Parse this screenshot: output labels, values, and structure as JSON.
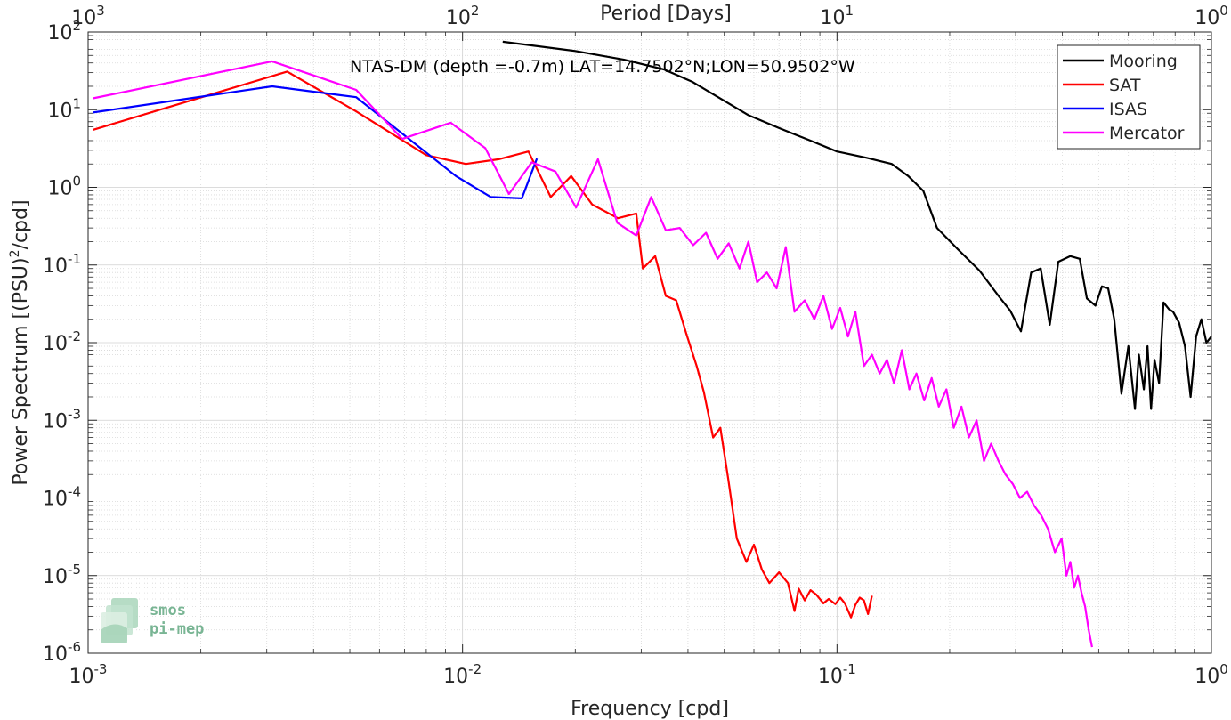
{
  "chart_data": {
    "type": "line",
    "title": "NTAS-DM (depth =-0.7m) LAT=14.7502°N;LON=50.9502°W",
    "xlabel": "Frequency [cpd]",
    "ylabel": "Power Spectrum [(PSU)²/cpd]",
    "ylabel_main": "Power Spectrum [(PSU)",
    "ylabel_sup": "2",
    "ylabel_end": "/cpd]",
    "top_xlabel": "Period [Days]",
    "x_scale": "log",
    "y_scale": "log",
    "xlim": [
      0.001,
      1
    ],
    "ylim": [
      1e-06,
      100
    ],
    "grid": true,
    "legend_position": "top-right",
    "x_ticks": [
      {
        "value": 0.001,
        "base": "10",
        "exp": "-3"
      },
      {
        "value": 0.01,
        "base": "10",
        "exp": "-2"
      },
      {
        "value": 0.1,
        "base": "10",
        "exp": "-1"
      },
      {
        "value": 1,
        "base": "10",
        "exp": "0"
      }
    ],
    "y_ticks": [
      {
        "value": 1e-06,
        "base": "10",
        "exp": "-6"
      },
      {
        "value": 1e-05,
        "base": "10",
        "exp": "-5"
      },
      {
        "value": 0.0001,
        "base": "10",
        "exp": "-4"
      },
      {
        "value": 0.001,
        "base": "10",
        "exp": "-3"
      },
      {
        "value": 0.01,
        "base": "10",
        "exp": "-2"
      },
      {
        "value": 0.1,
        "base": "10",
        "exp": "-1"
      },
      {
        "value": 1,
        "base": "10",
        "exp": "0"
      },
      {
        "value": 10,
        "base": "10",
        "exp": "1"
      },
      {
        "value": 100,
        "base": "10",
        "exp": "2"
      }
    ],
    "top_ticks": [
      {
        "value": 0.001,
        "base": "10",
        "exp": "3"
      },
      {
        "value": 0.01,
        "base": "10",
        "exp": "2"
      },
      {
        "value": 0.1,
        "base": "10",
        "exp": "1"
      },
      {
        "value": 1,
        "base": "10",
        "exp": "0"
      }
    ],
    "series": [
      {
        "name": "Mooring",
        "color": "#000000",
        "x": [
          0.0128,
          0.02,
          0.027,
          0.0345,
          0.041,
          0.05,
          0.058,
          0.07,
          0.085,
          0.1,
          0.12,
          0.14,
          0.155,
          0.17,
          0.185,
          0.21,
          0.24,
          0.27,
          0.29,
          0.31,
          0.33,
          0.35,
          0.37,
          0.39,
          0.42,
          0.445,
          0.465,
          0.49,
          0.51,
          0.53,
          0.55,
          0.575,
          0.6,
          0.625,
          0.64,
          0.66,
          0.675,
          0.69,
          0.705,
          0.725,
          0.745,
          0.77,
          0.79,
          0.82,
          0.85,
          0.88,
          0.91,
          0.94,
          0.97,
          1.0
        ],
        "y": [
          75,
          57,
          44,
          33,
          23,
          13,
          8.5,
          5.8,
          4.0,
          2.9,
          2.4,
          2.0,
          1.4,
          0.9,
          0.3,
          0.16,
          0.085,
          0.04,
          0.026,
          0.014,
          0.08,
          0.09,
          0.017,
          0.11,
          0.13,
          0.12,
          0.037,
          0.03,
          0.053,
          0.05,
          0.02,
          0.0022,
          0.009,
          0.0014,
          0.007,
          0.0025,
          0.009,
          0.0014,
          0.006,
          0.003,
          0.033,
          0.027,
          0.025,
          0.018,
          0.009,
          0.002,
          0.012,
          0.02,
          0.01,
          0.012
        ]
      },
      {
        "name": "SAT",
        "color": "#ff0000",
        "x": [
          0.00103,
          0.0034,
          0.0052,
          0.008,
          0.0102,
          0.0125,
          0.015,
          0.0172,
          0.0195,
          0.0222,
          0.026,
          0.0291,
          0.0303,
          0.0327,
          0.0349,
          0.0372,
          0.0396,
          0.0422,
          0.0441,
          0.0467,
          0.0488,
          0.0512,
          0.054,
          0.0573,
          0.06,
          0.063,
          0.066,
          0.07,
          0.074,
          0.077,
          0.079,
          0.082,
          0.085,
          0.088,
          0.092,
          0.095,
          0.099,
          0.102,
          0.105,
          0.109,
          0.112,
          0.115,
          0.118,
          0.121,
          0.124
        ],
        "y": [
          5.5,
          31,
          9.5,
          2.6,
          2.0,
          2.3,
          2.9,
          0.75,
          1.4,
          0.6,
          0.4,
          0.46,
          0.09,
          0.13,
          0.04,
          0.035,
          0.013,
          0.005,
          0.0023,
          0.0006,
          0.0008,
          0.00018,
          3e-05,
          1.5e-05,
          2.5e-05,
          1.2e-05,
          8e-06,
          1.1e-05,
          8e-06,
          3.5e-06,
          6.8e-06,
          4.8e-06,
          6.5e-06,
          5.7e-06,
          4.4e-06,
          5e-06,
          4.3e-06,
          5.2e-06,
          4.4e-06,
          2.9e-06,
          4.2e-06,
          5.2e-06,
          4.8e-06,
          3.2e-06,
          5.5e-06
        ]
      },
      {
        "name": "ISAS",
        "color": "#0000ff",
        "x": [
          0.00103,
          0.0031,
          0.0052,
          0.0096,
          0.0119,
          0.0144,
          0.0158
        ],
        "y": [
          9.2,
          20,
          14.5,
          1.4,
          0.75,
          0.72,
          2.35
        ]
      },
      {
        "name": "Mercator",
        "color": "#ff00ff",
        "x": [
          0.00103,
          0.0031,
          0.0052,
          0.0069,
          0.0093,
          0.0115,
          0.0133,
          0.0153,
          0.0177,
          0.0201,
          0.023,
          0.0259,
          0.0291,
          0.0319,
          0.0349,
          0.038,
          0.0413,
          0.0447,
          0.048,
          0.0514,
          0.0549,
          0.058,
          0.0612,
          0.065,
          0.069,
          0.073,
          0.077,
          0.082,
          0.087,
          0.092,
          0.097,
          0.102,
          0.107,
          0.112,
          0.118,
          0.124,
          0.13,
          0.136,
          0.142,
          0.149,
          0.156,
          0.163,
          0.171,
          0.179,
          0.187,
          0.196,
          0.205,
          0.215,
          0.225,
          0.236,
          0.247,
          0.258,
          0.27,
          0.282,
          0.295,
          0.308,
          0.322,
          0.336,
          0.351,
          0.366,
          0.382,
          0.398,
          0.41,
          0.42,
          0.43,
          0.44,
          0.45,
          0.46,
          0.47,
          0.48
        ],
        "y": [
          14,
          42,
          18,
          4.2,
          6.8,
          3.2,
          0.82,
          2.1,
          1.6,
          0.55,
          2.3,
          0.35,
          0.24,
          0.75,
          0.28,
          0.3,
          0.18,
          0.26,
          0.12,
          0.19,
          0.09,
          0.2,
          0.06,
          0.08,
          0.05,
          0.17,
          0.025,
          0.035,
          0.02,
          0.04,
          0.015,
          0.028,
          0.012,
          0.025,
          0.005,
          0.007,
          0.004,
          0.006,
          0.003,
          0.008,
          0.0025,
          0.004,
          0.0018,
          0.0035,
          0.0015,
          0.0025,
          0.0008,
          0.0015,
          0.0006,
          0.001,
          0.0003,
          0.0005,
          0.0003,
          0.0002,
          0.00015,
          0.0001,
          0.00012,
          8e-05,
          6e-05,
          4e-05,
          2e-05,
          3e-05,
          1e-05,
          1.5e-05,
          7e-06,
          1e-05,
          6e-06,
          4e-06,
          2e-06,
          1.2e-06
        ]
      }
    ]
  },
  "logo": {
    "line1": "smos",
    "line2": "pi-mep"
  }
}
